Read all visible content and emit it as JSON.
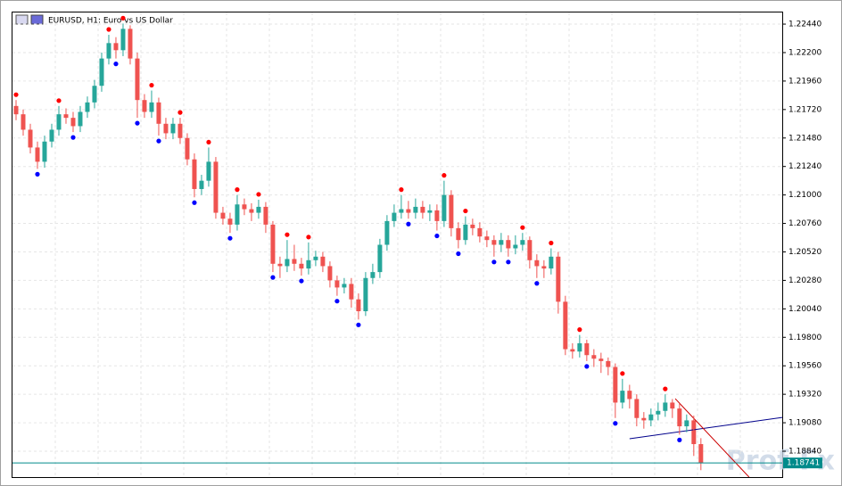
{
  "chart_data": {
    "type": "candlestick",
    "title": "EURUSD, H1:  Euro vs US Dollar",
    "watermark": "Prof-Fx",
    "up_color": "#26a69a",
    "down_color": "#ef5350",
    "grid": true,
    "xlim": [
      -0.5,
      107.4
    ],
    "ylim": [
      1.18622,
      1.22538
    ],
    "yticks": [
      {
        "value": 1.2244,
        "label": "1.22440"
      },
      {
        "value": 1.222,
        "label": "1.22200"
      },
      {
        "value": 1.2196,
        "label": "1.21960"
      },
      {
        "value": 1.2172,
        "label": "1.21720"
      },
      {
        "value": 1.2148,
        "label": "1.21480"
      },
      {
        "value": 1.2124,
        "label": "1.21240"
      },
      {
        "value": 1.21,
        "label": "1.21000"
      },
      {
        "value": 1.2076,
        "label": "1.20760"
      },
      {
        "value": 1.2052,
        "label": "1.20520"
      },
      {
        "value": 1.2028,
        "label": "1.20280"
      },
      {
        "value": 1.2004,
        "label": "1.20040"
      },
      {
        "value": 1.198,
        "label": "1.19800"
      },
      {
        "value": 1.1956,
        "label": "1.19560"
      },
      {
        "value": 1.1932,
        "label": "1.19320"
      },
      {
        "value": 1.1908,
        "label": "1.19080"
      },
      {
        "value": 1.1884,
        "label": "1.18840"
      }
    ],
    "open": [
      1.2175,
      1.2168,
      1.2155,
      1.214,
      1.2128,
      1.2145,
      1.2155,
      1.2168,
      1.2165,
      1.2158,
      1.217,
      1.2178,
      1.2192,
      1.2215,
      1.2228,
      1.2222,
      1.224,
      1.2215,
      1.218,
      1.217,
      1.2178,
      1.216,
      1.2152,
      1.216,
      1.2148,
      1.213,
      1.2105,
      1.2112,
      1.2128,
      1.2085,
      1.208,
      1.2075,
      1.2092,
      1.2088,
      1.2085,
      1.209,
      1.2075,
      1.2042,
      1.204,
      1.2046,
      1.2042,
      1.2038,
      1.2045,
      1.2048,
      1.204,
      1.2028,
      1.2022,
      1.2025,
      1.2012,
      1.2002,
      1.203,
      1.2035,
      1.2058,
      1.2078,
      1.2085,
      1.2088,
      1.2085,
      1.209,
      1.2085,
      1.2087,
      1.2078,
      1.21,
      1.2072,
      1.2062,
      1.2075,
      1.2072,
      1.2065,
      1.2062,
      1.2058,
      1.2062,
      1.2055,
      1.2058,
      1.2062,
      1.2045,
      1.204,
      1.2038,
      1.2048,
      1.201,
      1.197,
      1.1968,
      1.1975,
      1.1965,
      1.1962,
      1.196,
      1.1955,
      1.1925,
      1.1935,
      1.1928,
      1.1912,
      1.191,
      1.1915,
      1.1918,
      1.1925,
      1.192,
      1.1905,
      1.191,
      1.189
    ],
    "high": [
      1.218,
      1.2172,
      1.216,
      1.2145,
      1.215,
      1.216,
      1.2175,
      1.2173,
      1.217,
      1.2175,
      1.2183,
      1.2197,
      1.222,
      1.2235,
      1.2233,
      1.22445,
      1.2243,
      1.222,
      1.2185,
      1.2188,
      1.2182,
      1.2165,
      1.2165,
      1.2165,
      1.2152,
      1.2135,
      1.2117,
      1.214,
      1.2132,
      1.209,
      1.2085,
      1.21,
      1.2097,
      1.2093,
      1.2096,
      1.2094,
      1.2078,
      1.2048,
      1.2062,
      1.2058,
      1.2047,
      1.206,
      1.2053,
      1.2052,
      1.2044,
      1.2032,
      1.203,
      1.203,
      1.2017,
      1.2035,
      1.2042,
      1.2063,
      1.2083,
      1.2092,
      1.21,
      1.2095,
      1.2097,
      1.2095,
      1.2092,
      1.2092,
      1.2112,
      1.2104,
      1.2077,
      1.2082,
      1.208,
      1.2077,
      1.207,
      1.2066,
      1.2068,
      1.2066,
      1.2066,
      1.2068,
      1.2065,
      1.205,
      1.2045,
      1.2055,
      1.2052,
      1.2015,
      1.1975,
      1.1982,
      1.1978,
      1.197,
      1.1967,
      1.1963,
      1.1958,
      1.1945,
      1.194,
      1.1932,
      1.1917,
      1.192,
      1.1925,
      1.1932,
      1.1928,
      1.1924,
      1.1915,
      1.1914,
      1.1895
    ],
    "low": [
      1.2163,
      1.215,
      1.2135,
      1.2122,
      1.2123,
      1.214,
      1.215,
      1.216,
      1.2153,
      1.2153,
      1.2165,
      1.2173,
      1.2187,
      1.221,
      1.2215,
      1.2217,
      1.221,
      1.2165,
      1.2165,
      1.2165,
      1.215,
      1.2147,
      1.2147,
      1.2143,
      1.2125,
      1.2098,
      1.21,
      1.2107,
      1.208,
      1.2075,
      1.2068,
      1.207,
      1.2083,
      1.2078,
      1.208,
      1.2068,
      1.2035,
      1.203,
      1.2035,
      1.2036,
      1.2032,
      1.2033,
      1.204,
      1.2035,
      1.2022,
      1.2015,
      1.2017,
      1.2005,
      1.1995,
      1.1998,
      1.2025,
      1.203,
      1.2053,
      1.2073,
      1.208,
      1.208,
      1.208,
      1.208,
      1.2078,
      1.207,
      1.2073,
      1.2065,
      1.2055,
      1.2058,
      1.2066,
      1.206,
      1.2056,
      1.2048,
      1.2052,
      1.2048,
      1.205,
      1.2053,
      1.2038,
      1.203,
      1.203,
      1.2033,
      1.2,
      1.1965,
      1.1962,
      1.1963,
      1.196,
      1.1955,
      1.195,
      1.1948,
      1.1912,
      1.192,
      1.192,
      1.1905,
      1.1903,
      1.1905,
      1.191,
      1.1913,
      1.1912,
      1.1898,
      1.19,
      1.188,
      1.1868
    ],
    "close": [
      1.2168,
      1.2155,
      1.214,
      1.2128,
      1.2145,
      1.2155,
      1.2168,
      1.2165,
      1.2158,
      1.217,
      1.2178,
      1.2192,
      1.2215,
      1.2228,
      1.2222,
      1.224,
      1.2215,
      1.218,
      1.217,
      1.2178,
      1.216,
      1.2152,
      1.216,
      1.2148,
      1.213,
      1.2105,
      1.2112,
      1.2128,
      1.2085,
      1.208,
      1.2075,
      1.2092,
      1.2088,
      1.2085,
      1.209,
      1.2075,
      1.2042,
      1.204,
      1.2046,
      1.2042,
      1.2038,
      1.2045,
      1.2048,
      1.204,
      1.2028,
      1.2022,
      1.2025,
      1.2012,
      1.2002,
      1.203,
      1.2035,
      1.2058,
      1.2078,
      1.2085,
      1.2088,
      1.2085,
      1.209,
      1.2085,
      1.2087,
      1.2078,
      1.21,
      1.2072,
      1.2062,
      1.2075,
      1.2072,
      1.2065,
      1.2062,
      1.2058,
      1.2062,
      1.2055,
      1.2058,
      1.2062,
      1.2045,
      1.204,
      1.2038,
      1.2048,
      1.201,
      1.197,
      1.1968,
      1.1975,
      1.1965,
      1.1962,
      1.196,
      1.1955,
      1.1925,
      1.1935,
      1.1928,
      1.1912,
      1.191,
      1.1915,
      1.1918,
      1.1925,
      1.192,
      1.1905,
      1.191,
      1.189,
      1.18741
    ],
    "fractals_up": {
      "color": "#ff0000",
      "x": [
        0,
        6,
        13,
        15,
        19,
        23,
        27,
        31,
        34,
        38,
        41,
        54,
        60,
        63,
        71,
        75,
        79,
        85,
        91
      ],
      "values": [
        1.218,
        1.2175,
        1.2235,
        1.22445,
        1.2188,
        1.2165,
        1.214,
        1.21,
        1.2096,
        1.2062,
        1.206,
        1.21,
        1.2112,
        1.2082,
        1.2068,
        1.2055,
        1.1982,
        1.1945,
        1.1932
      ]
    },
    "fractals_down": {
      "color": "#0000ff",
      "x": [
        3,
        8,
        14,
        17,
        20,
        25,
        30,
        36,
        40,
        45,
        48,
        55,
        59,
        62,
        67,
        69,
        73,
        80,
        84,
        93
      ],
      "values": [
        1.2122,
        1.2153,
        1.2215,
        1.2165,
        1.215,
        1.2098,
        1.2068,
        1.2035,
        1.2032,
        1.2015,
        1.1995,
        1.208,
        1.207,
        1.2055,
        1.2048,
        1.2048,
        1.203,
        1.196,
        1.1912,
        1.1898
      ]
    },
    "trendlines": [
      {
        "color": "#00008b",
        "x": [
          86,
          107.4
        ],
        "values": [
          1.18945,
          1.19125
        ]
      },
      {
        "color": "#cc0000",
        "x": [
          92.4,
          102.75
        ],
        "values": [
          1.19283,
          1.18622
        ]
      }
    ],
    "last_price": 1.18741,
    "last_price_color": "#008b8b"
  }
}
